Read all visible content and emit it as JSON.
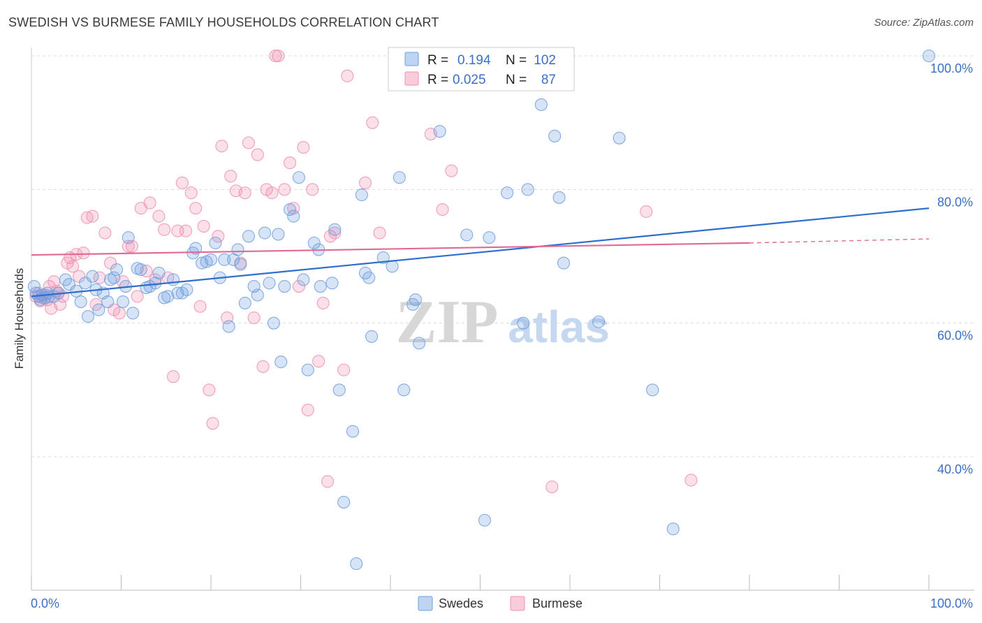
{
  "header": {
    "title": "SWEDISH VS BURMESE FAMILY HOUSEHOLDS CORRELATION CHART",
    "source": "Source: ZipAtlas.com"
  },
  "watermark": {
    "zip": "ZIP",
    "atlas": "atlas"
  },
  "legend_box": {
    "rows": [
      {
        "r_label": "R =",
        "r_value": "0.194",
        "n_label": "N =",
        "n_value": "102",
        "color": "#6e9fe0"
      },
      {
        "r_label": "R =",
        "r_value": "0.025",
        "n_label": "N =",
        "n_value": "87",
        "color": "#ef8fb0"
      }
    ]
  },
  "chart_data": {
    "type": "scatter",
    "title": "SWEDISH VS BURMESE FAMILY HOUSEHOLDS CORRELATION CHART",
    "xlabel": "",
    "ylabel": "Family Households",
    "xlim": [
      0,
      100
    ],
    "ylim": [
      20,
      102
    ],
    "x_tick_labels": [
      "0.0%",
      "100.0%"
    ],
    "y_ticks": [
      40,
      60,
      80,
      100
    ],
    "y_tick_labels": [
      "40.0%",
      "60.0%",
      "80.0%",
      "100.0%"
    ],
    "grid": true,
    "legend_position": "bottom",
    "series": [
      {
        "name": "Swedes",
        "color": "#6e9fe0",
        "trend": {
          "x": [
            0,
            100
          ],
          "y": [
            64.0,
            77.2
          ],
          "dashed_from": null
        },
        "points": [
          [
            0.3,
            65.5
          ],
          [
            0.5,
            64.5
          ],
          [
            0.8,
            64.0
          ],
          [
            1.0,
            63.5
          ],
          [
            1.2,
            64.2
          ],
          [
            1.5,
            63.8
          ],
          [
            1.8,
            64.5
          ],
          [
            2.0,
            64.0
          ],
          [
            2.5,
            64.0
          ],
          [
            3.0,
            64.5
          ],
          [
            3.8,
            66.5
          ],
          [
            4.2,
            65.8
          ],
          [
            5.0,
            64.8
          ],
          [
            5.5,
            63.2
          ],
          [
            6.0,
            66.0
          ],
          [
            6.3,
            61.0
          ],
          [
            6.8,
            67.0
          ],
          [
            7.2,
            65.0
          ],
          [
            7.5,
            62.0
          ],
          [
            8.0,
            64.5
          ],
          [
            8.5,
            63.2
          ],
          [
            8.8,
            66.5
          ],
          [
            9.2,
            66.8
          ],
          [
            9.5,
            68.0
          ],
          [
            10.2,
            63.2
          ],
          [
            10.5,
            65.5
          ],
          [
            10.8,
            72.8
          ],
          [
            11.3,
            61.5
          ],
          [
            11.8,
            68.2
          ],
          [
            12.2,
            68.0
          ],
          [
            12.8,
            65.3
          ],
          [
            13.2,
            65.5
          ],
          [
            13.8,
            66.0
          ],
          [
            14.2,
            67.5
          ],
          [
            14.8,
            63.8
          ],
          [
            15.2,
            64.0
          ],
          [
            15.8,
            66.5
          ],
          [
            16.3,
            64.5
          ],
          [
            16.8,
            64.5
          ],
          [
            17.3,
            65.0
          ],
          [
            18.0,
            70.5
          ],
          [
            18.3,
            71.2
          ],
          [
            19.0,
            69.0
          ],
          [
            19.5,
            69.2
          ],
          [
            20.0,
            69.5
          ],
          [
            20.5,
            72.0
          ],
          [
            21.0,
            66.8
          ],
          [
            21.5,
            69.5
          ],
          [
            22.0,
            59.5
          ],
          [
            22.5,
            69.5
          ],
          [
            23.0,
            71.0
          ],
          [
            23.3,
            68.8
          ],
          [
            23.8,
            63.0
          ],
          [
            24.2,
            73.0
          ],
          [
            24.8,
            65.5
          ],
          [
            25.2,
            64.2
          ],
          [
            26.0,
            73.5
          ],
          [
            26.5,
            66.0
          ],
          [
            27.0,
            60.0
          ],
          [
            27.5,
            73.3
          ],
          [
            27.8,
            54.2
          ],
          [
            28.2,
            65.5
          ],
          [
            28.8,
            77.0
          ],
          [
            29.2,
            76.0
          ],
          [
            29.8,
            81.8
          ],
          [
            30.3,
            66.5
          ],
          [
            30.8,
            53.0
          ],
          [
            31.5,
            72.0
          ],
          [
            32.0,
            71.0
          ],
          [
            32.2,
            65.5
          ],
          [
            33.5,
            66.0
          ],
          [
            33.8,
            74.0
          ],
          [
            34.3,
            50.0
          ],
          [
            34.8,
            33.2
          ],
          [
            35.8,
            43.8
          ],
          [
            36.2,
            24.0
          ],
          [
            36.8,
            79.2
          ],
          [
            37.2,
            67.5
          ],
          [
            37.6,
            66.8
          ],
          [
            37.9,
            58.0
          ],
          [
            39.2,
            69.8
          ],
          [
            40.2,
            68.5
          ],
          [
            41.0,
            81.8
          ],
          [
            41.5,
            50.0
          ],
          [
            42.5,
            62.8
          ],
          [
            42.8,
            63.5
          ],
          [
            43.2,
            57.0
          ],
          [
            45.5,
            88.7
          ],
          [
            48.5,
            73.2
          ],
          [
            50.5,
            30.5
          ],
          [
            51.0,
            72.8
          ],
          [
            53.0,
            79.5
          ],
          [
            54.8,
            60.0
          ],
          [
            55.3,
            80.0
          ],
          [
            56.3,
            100.0
          ],
          [
            56.8,
            92.7
          ],
          [
            58.3,
            88.0
          ],
          [
            58.8,
            78.8
          ],
          [
            59.3,
            69.0
          ],
          [
            63.2,
            60.2
          ],
          [
            65.5,
            87.7
          ],
          [
            69.2,
            50.0
          ],
          [
            71.5,
            29.2
          ],
          [
            100.0,
            100.0
          ]
        ]
      },
      {
        "name": "Burmese",
        "color": "#ef8fb0",
        "trend": {
          "x": [
            0,
            80,
            100
          ],
          "y": [
            70.2,
            72.0,
            72.6
          ],
          "dashed_from": 80
        },
        "points": [
          [
            0.5,
            64.0
          ],
          [
            0.8,
            64.5
          ],
          [
            1.0,
            63.3
          ],
          [
            1.2,
            63.8
          ],
          [
            1.5,
            64.2
          ],
          [
            1.8,
            63.5
          ],
          [
            2.0,
            65.5
          ],
          [
            2.2,
            62.2
          ],
          [
            2.5,
            66.2
          ],
          [
            2.8,
            64.8
          ],
          [
            3.0,
            64.5
          ],
          [
            3.2,
            62.8
          ],
          [
            3.5,
            64.0
          ],
          [
            4.0,
            69.0
          ],
          [
            4.3,
            69.8
          ],
          [
            4.6,
            68.5
          ],
          [
            5.0,
            70.3
          ],
          [
            5.3,
            67.0
          ],
          [
            5.8,
            70.5
          ],
          [
            6.2,
            75.8
          ],
          [
            6.8,
            76.0
          ],
          [
            7.2,
            62.8
          ],
          [
            7.6,
            66.8
          ],
          [
            8.2,
            73.5
          ],
          [
            8.8,
            69.0
          ],
          [
            9.2,
            62.0
          ],
          [
            9.8,
            61.5
          ],
          [
            10.2,
            66.2
          ],
          [
            10.8,
            71.5
          ],
          [
            11.2,
            71.5
          ],
          [
            11.8,
            64.0
          ],
          [
            12.2,
            77.2
          ],
          [
            12.8,
            67.8
          ],
          [
            13.2,
            78.0
          ],
          [
            13.8,
            66.5
          ],
          [
            14.2,
            76.0
          ],
          [
            14.8,
            74.0
          ],
          [
            15.2,
            66.8
          ],
          [
            15.8,
            52.0
          ],
          [
            16.3,
            73.8
          ],
          [
            16.8,
            81.0
          ],
          [
            17.2,
            73.8
          ],
          [
            17.8,
            79.5
          ],
          [
            18.3,
            77.2
          ],
          [
            18.8,
            62.5
          ],
          [
            19.2,
            74.5
          ],
          [
            19.8,
            50.0
          ],
          [
            20.2,
            45.0
          ],
          [
            20.8,
            73.0
          ],
          [
            21.2,
            86.5
          ],
          [
            21.8,
            60.8
          ],
          [
            22.2,
            82.0
          ],
          [
            22.8,
            79.8
          ],
          [
            23.3,
            69.0
          ],
          [
            23.8,
            79.5
          ],
          [
            24.2,
            87.0
          ],
          [
            24.8,
            60.8
          ],
          [
            25.2,
            85.2
          ],
          [
            25.8,
            53.5
          ],
          [
            26.2,
            80.0
          ],
          [
            26.8,
            79.5
          ],
          [
            27.2,
            100.0
          ],
          [
            27.5,
            100.0
          ],
          [
            28.2,
            80.0
          ],
          [
            28.8,
            84.0
          ],
          [
            29.2,
            77.2
          ],
          [
            29.8,
            65.5
          ],
          [
            30.3,
            86.3
          ],
          [
            30.8,
            47.0
          ],
          [
            31.3,
            80.0
          ],
          [
            32.0,
            54.3
          ],
          [
            32.5,
            63.0
          ],
          [
            33.0,
            36.3
          ],
          [
            33.3,
            73.0
          ],
          [
            33.8,
            73.5
          ],
          [
            34.8,
            53.0
          ],
          [
            35.2,
            97.0
          ],
          [
            37.2,
            81.0
          ],
          [
            38.0,
            90.0
          ],
          [
            38.8,
            73.5
          ],
          [
            44.5,
            88.3
          ],
          [
            45.8,
            77.0
          ],
          [
            46.8,
            82.8
          ],
          [
            58.0,
            35.5
          ],
          [
            68.5,
            76.7
          ],
          [
            73.5,
            36.5
          ]
        ]
      }
    ]
  }
}
